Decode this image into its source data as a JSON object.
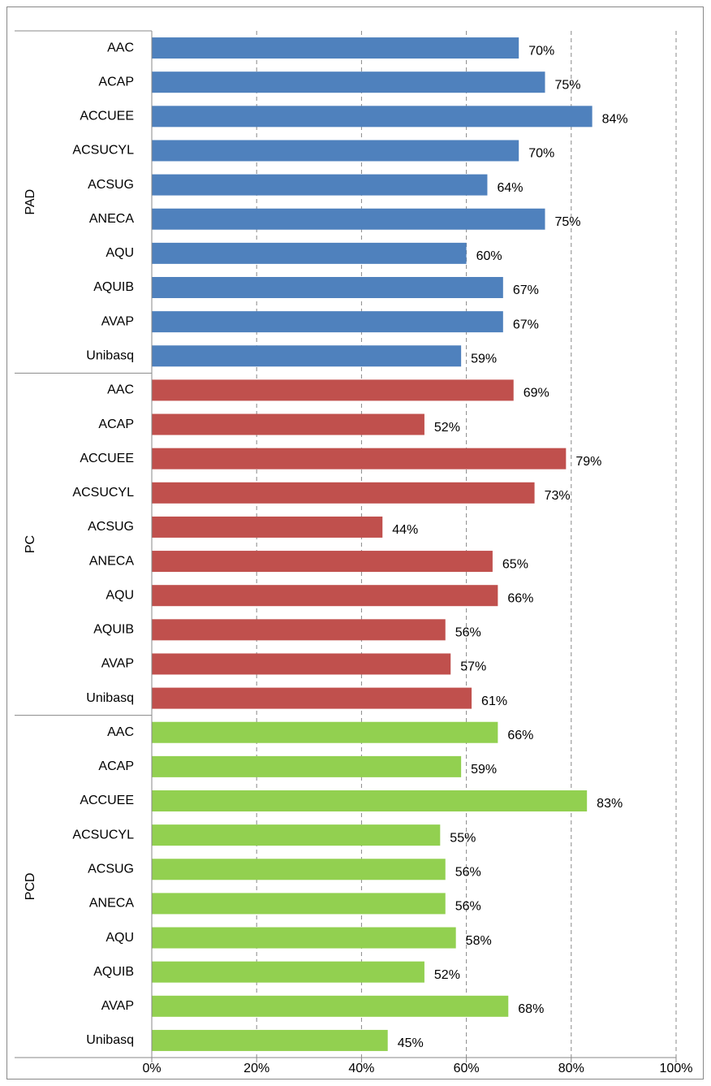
{
  "chart_data": {
    "type": "bar",
    "orientation": "horizontal",
    "xlim": [
      0,
      100
    ],
    "xticks": [
      {
        "value": 0,
        "label": "0%"
      },
      {
        "value": 20,
        "label": "20%"
      },
      {
        "value": 40,
        "label": "40%"
      },
      {
        "value": 60,
        "label": "60%"
      },
      {
        "value": 80,
        "label": "80%"
      },
      {
        "value": 100,
        "label": "100%"
      }
    ],
    "grid": true,
    "groups": [
      {
        "name": "PAD",
        "color": "#4f81bd",
        "categories": [
          "AAC",
          "ACAP",
          "ACCUEE",
          "ACSUCYL",
          "ACSUG",
          "ANECA",
          "AQU",
          "AQUIB",
          "AVAP",
          "Unibasq"
        ],
        "values": [
          70,
          75,
          84,
          70,
          64,
          75,
          60,
          67,
          67,
          59
        ],
        "value_labels": [
          "70%",
          "75%",
          "84%",
          "70%",
          "64%",
          "75%",
          "60%",
          "67%",
          "67%",
          "59%"
        ]
      },
      {
        "name": "PC",
        "color": "#c0504d",
        "categories": [
          "AAC",
          "ACAP",
          "ACCUEE",
          "ACSUCYL",
          "ACSUG",
          "ANECA",
          "AQU",
          "AQUIB",
          "AVAP",
          "Unibasq"
        ],
        "values": [
          69,
          52,
          79,
          73,
          44,
          65,
          66,
          56,
          57,
          61
        ],
        "value_labels": [
          "69%",
          "52%",
          "79%",
          "73%",
          "44%",
          "65%",
          "66%",
          "56%",
          "57%",
          "61%"
        ]
      },
      {
        "name": "PCD",
        "color": "#92d050",
        "categories": [
          "AAC",
          "ACAP",
          "ACCUEE",
          "ACSUCYL",
          "ACSUG",
          "ANECA",
          "AQU",
          "AQUIB",
          "AVAP",
          "Unibasq"
        ],
        "values": [
          66,
          59,
          83,
          55,
          56,
          56,
          58,
          52,
          68,
          45
        ],
        "value_labels": [
          "66%",
          "59%",
          "83%",
          "55%",
          "56%",
          "56%",
          "58%",
          "52%",
          "68%",
          "45%"
        ]
      }
    ]
  }
}
